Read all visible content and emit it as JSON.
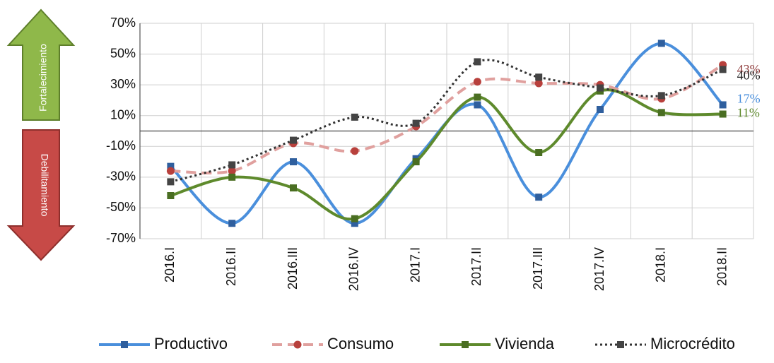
{
  "chart_data": {
    "type": "line",
    "annotations": {
      "up": "Fortalecimiento",
      "down": "Debilitamiento"
    },
    "categories": [
      "2016.I",
      "2016.II",
      "2016.III",
      "2016.IV",
      "2017.I",
      "2017.II",
      "2017.III",
      "2017.IV",
      "2018.I",
      "2018.II"
    ],
    "series": [
      {
        "name": "Productivo",
        "color": "#4a8fdc",
        "marker_color": "#2f5f9e",
        "marker": "square",
        "line_style": "solid",
        "values": [
          -23,
          -60,
          -20,
          -60,
          -18,
          17,
          -43,
          14,
          57,
          17
        ],
        "value_labels": [
          null,
          null,
          null,
          null,
          null,
          null,
          null,
          null,
          null,
          "17%"
        ]
      },
      {
        "name": "Consumo",
        "color": "#e0a09e",
        "marker_color": "#b8403c",
        "marker": "circle",
        "line_style": "dashed",
        "values": [
          -26,
          -26,
          -8,
          -13,
          3,
          32,
          31,
          30,
          21,
          43
        ],
        "value_labels": [
          null,
          null,
          null,
          null,
          null,
          null,
          null,
          null,
          null,
          "43%"
        ]
      },
      {
        "name": "Vivienda",
        "color": "#5e8a2c",
        "marker_color": "#4a6e22",
        "marker": "square",
        "line_style": "solid",
        "values": [
          -42,
          -30,
          -37,
          -57,
          -20,
          22,
          -14,
          26,
          12,
          11
        ],
        "value_labels": [
          null,
          null,
          null,
          null,
          null,
          null,
          null,
          null,
          null,
          "11%"
        ]
      },
      {
        "name": "Microcrédito",
        "color": "#333333",
        "marker_color": "#444444",
        "marker": "square",
        "line_style": "dotted",
        "values": [
          -33,
          -22,
          -6,
          9,
          5,
          45,
          35,
          28,
          23,
          40
        ],
        "value_labels": [
          null,
          null,
          null,
          null,
          null,
          null,
          null,
          null,
          null,
          "40%"
        ]
      }
    ],
    "ylim": [
      -70,
      70
    ],
    "yticks": [
      {
        "value": -70,
        "label": "-70%"
      },
      {
        "value": -50,
        "label": "-50%"
      },
      {
        "value": -30,
        "label": "-30%"
      },
      {
        "value": -10,
        "label": "-10%"
      },
      {
        "value": 10,
        "label": "10%"
      },
      {
        "value": 30,
        "label": "30%"
      },
      {
        "value": 50,
        "label": "50%"
      },
      {
        "value": 70,
        "label": "70%"
      }
    ],
    "grid": true,
    "legend": "bottom"
  }
}
